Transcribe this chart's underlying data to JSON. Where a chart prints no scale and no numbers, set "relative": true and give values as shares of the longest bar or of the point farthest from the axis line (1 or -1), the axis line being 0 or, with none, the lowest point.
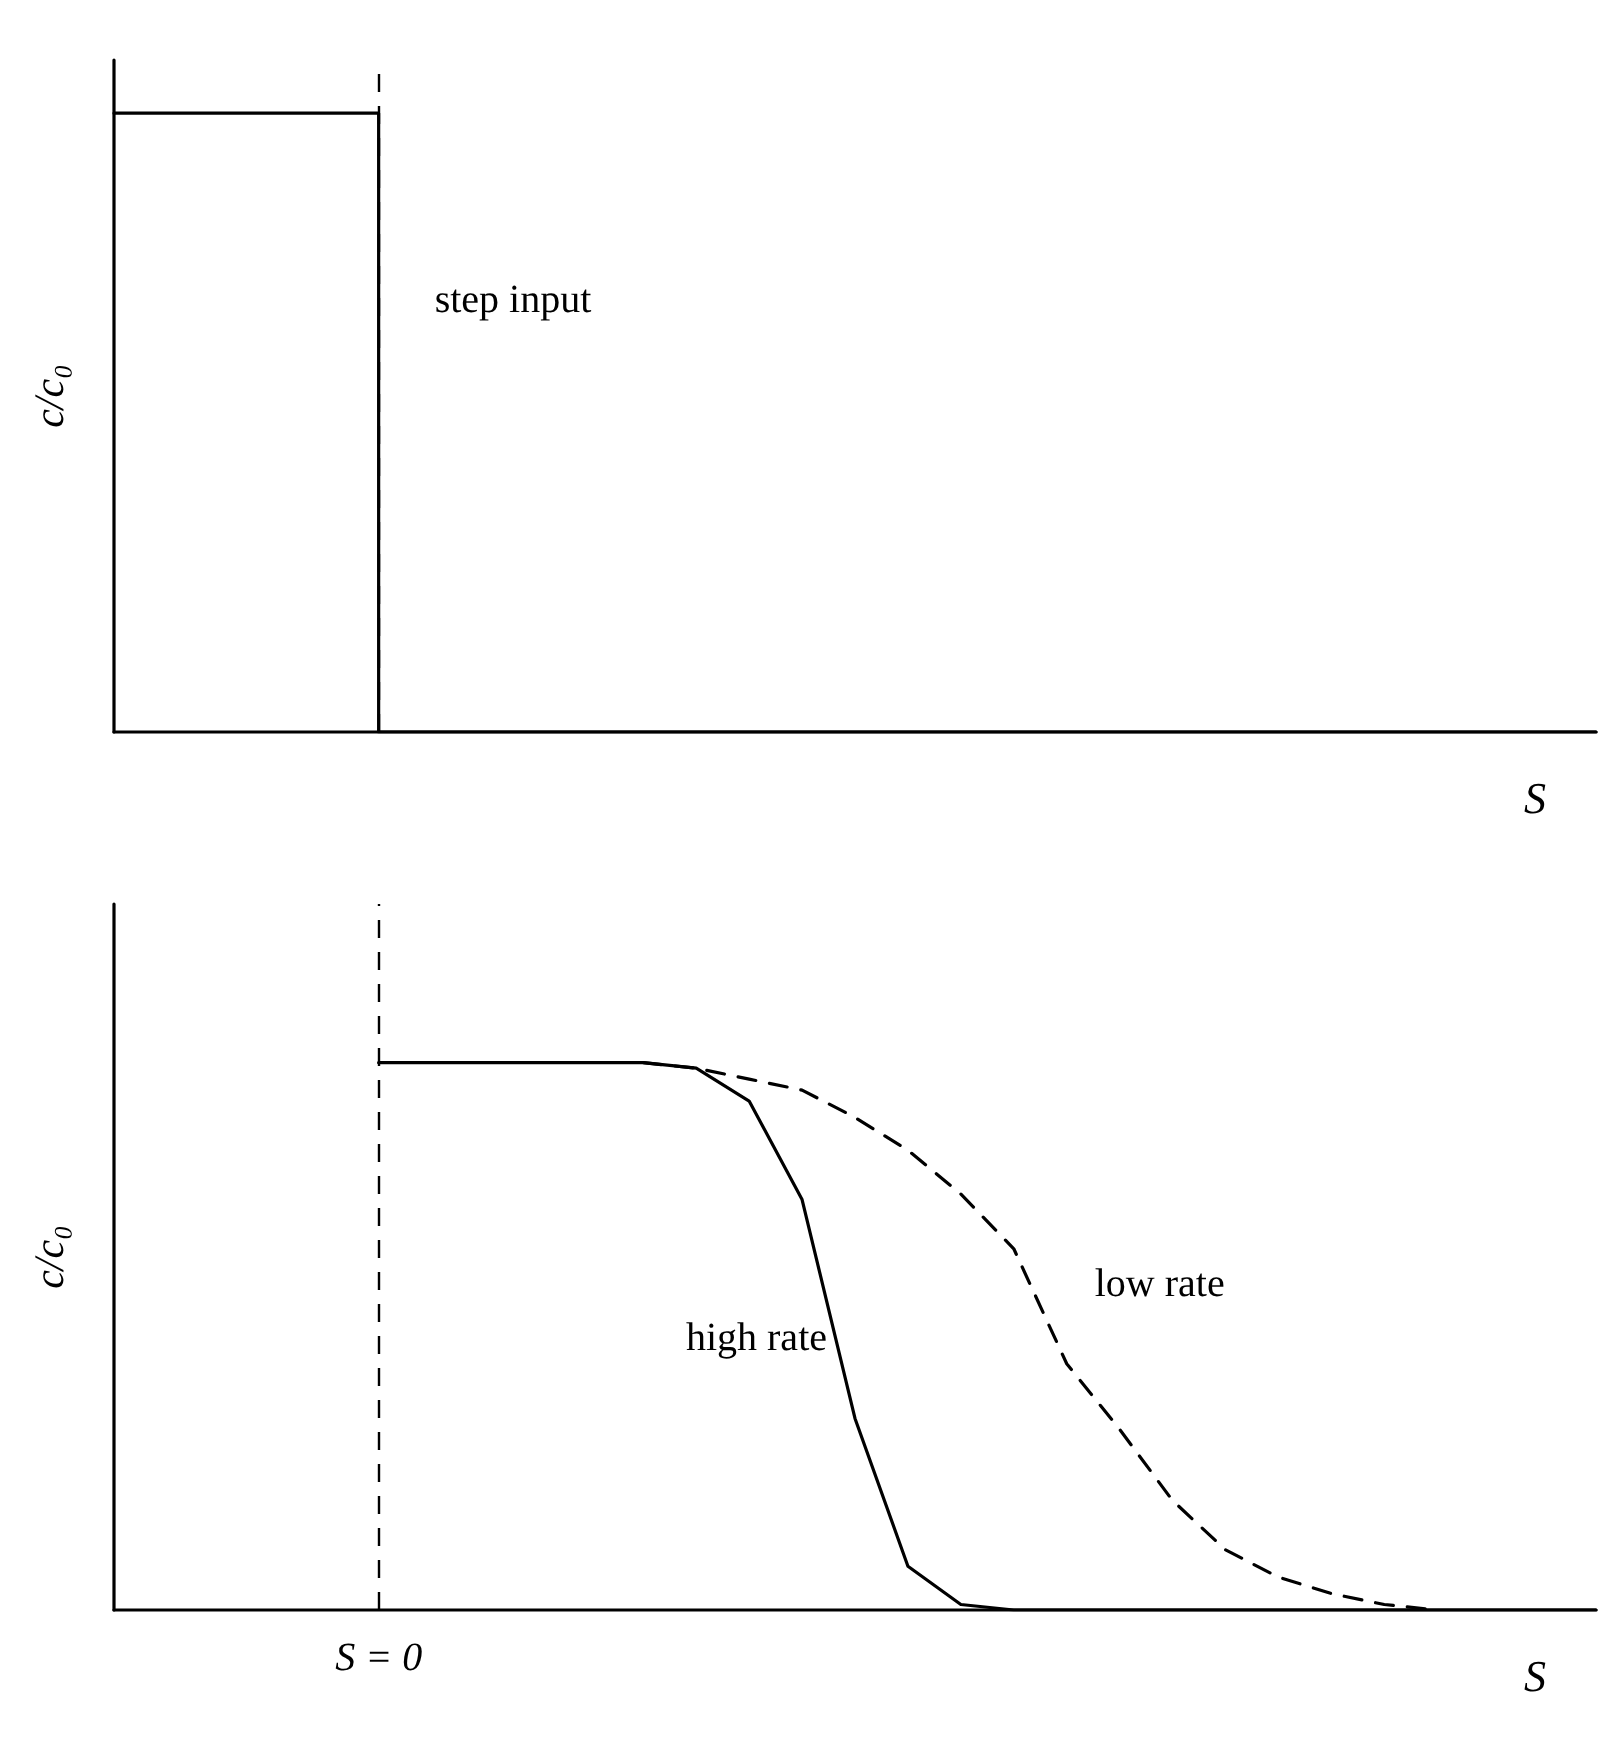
{
  "chart_data": [
    {
      "type": "step",
      "relative": true,
      "xlabel": "S",
      "ylabel": "c/c₀",
      "marker": "none",
      "line_style": "solid",
      "categories": [
        null,
        null,
        null,
        null,
        null,
        null,
        null,
        null,
        null,
        null,
        null,
        null,
        null,
        null,
        null,
        null,
        null,
        null,
        null,
        null,
        null,
        null,
        null,
        null,
        null,
        null,
        null,
        null,
        null
      ],
      "series": [
        {
          "color": "#000000",
          "values": [
            1,
            1,
            1,
            1,
            1,
            1,
            0,
            0,
            0,
            0,
            0,
            0,
            0,
            0,
            0,
            0,
            0,
            0,
            0,
            0,
            0,
            0,
            0,
            0,
            0,
            0,
            0,
            0,
            0
          ]
        }
      ],
      "annotations": [
        "step input"
      ]
    },
    {
      "type": "line",
      "relative": true,
      "xlabel": "S",
      "ylabel": "c/c₀",
      "marker": "none",
      "categories": [
        null,
        null,
        null,
        null,
        null,
        null,
        null,
        null,
        null,
        null,
        null,
        null,
        null,
        null,
        null,
        null,
        null,
        null,
        null,
        null,
        null,
        null,
        null,
        null,
        null,
        null,
        null,
        null,
        null
      ],
      "series": [
        {
          "name": "high rate",
          "color": "#000000",
          "line_style": "solid",
          "values": [
            null,
            null,
            null,
            null,
            null,
            1,
            1,
            1,
            1,
            1,
            1,
            0.99,
            0.93,
            0.75,
            0.35,
            0.08,
            0.01,
            0,
            0,
            0,
            0,
            0,
            0,
            0,
            0,
            0,
            0,
            0,
            0
          ]
        },
        {
          "name": "low rate",
          "color": "#000000",
          "line_style": "dashed",
          "values": [
            null,
            null,
            null,
            null,
            null,
            null,
            null,
            null,
            null,
            null,
            1,
            0.99,
            0.97,
            0.95,
            0.9,
            0.84,
            0.76,
            0.66,
            0.45,
            0.33,
            0.2,
            0.11,
            0.06,
            0.03,
            0.01,
            0,
            null,
            null,
            null
          ]
        }
      ],
      "annotations": [
        "S = 0"
      ]
    }
  ]
}
